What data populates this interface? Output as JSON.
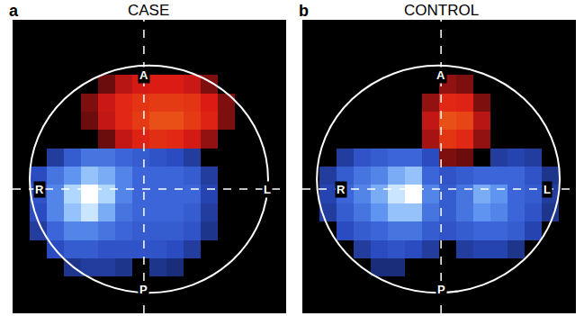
{
  "chart_data": [
    {
      "type": "heatmap",
      "panel_label": "a",
      "title": "CASE",
      "annotations": [
        "A",
        "P",
        "R",
        "L"
      ],
      "x": [
        1,
        3,
        5,
        7,
        9,
        11,
        13,
        15,
        17,
        19,
        21,
        23,
        25,
        27,
        29,
        31
      ],
      "y": [
        1,
        3,
        5,
        7,
        9,
        11,
        13,
        15,
        17,
        19,
        21,
        23,
        25,
        27,
        29,
        31
      ],
      "z": [
        [
          0,
          0,
          0,
          0,
          0,
          0,
          0,
          0,
          0,
          0,
          0,
          0,
          0,
          0,
          0,
          0
        ],
        [
          0,
          0,
          0,
          0,
          0,
          0,
          0,
          0,
          0,
          0,
          0,
          0,
          0,
          0,
          0,
          0
        ],
        [
          0,
          0,
          0,
          0,
          0,
          0,
          0,
          0,
          0,
          0,
          0,
          0,
          0,
          0,
          0,
          0
        ],
        [
          0,
          0,
          0,
          0,
          0,
          20,
          40,
          55,
          60,
          60,
          50,
          25,
          0,
          0,
          0,
          0
        ],
        [
          0,
          0,
          0,
          0,
          25,
          50,
          70,
          80,
          85,
          85,
          80,
          60,
          25,
          0,
          0,
          0
        ],
        [
          0,
          0,
          0,
          0,
          20,
          45,
          70,
          85,
          95,
          95,
          85,
          65,
          25,
          0,
          0,
          0
        ],
        [
          0,
          0,
          0,
          0,
          0,
          20,
          45,
          65,
          75,
          70,
          55,
          30,
          0,
          0,
          0,
          0
        ],
        [
          0,
          0,
          -30,
          -50,
          -60,
          -60,
          -55,
          -50,
          -45,
          -40,
          -30,
          0,
          0,
          0,
          0,
          0
        ],
        [
          0,
          -40,
          -60,
          -70,
          -80,
          -75,
          -65,
          -55,
          -55,
          -55,
          -50,
          -30,
          0,
          0,
          0,
          0
        ],
        [
          0,
          -45,
          -65,
          -85,
          -100,
          -85,
          -65,
          -55,
          -55,
          -55,
          -55,
          -35,
          0,
          0,
          0,
          0
        ],
        [
          0,
          -40,
          -65,
          -80,
          -90,
          -75,
          -60,
          -55,
          -55,
          -55,
          -50,
          -30,
          0,
          0,
          0,
          0
        ],
        [
          0,
          -30,
          -55,
          -65,
          -65,
          -60,
          -55,
          -50,
          -50,
          -50,
          -45,
          -25,
          0,
          0,
          0,
          0
        ],
        [
          0,
          0,
          -40,
          -50,
          -50,
          -45,
          -45,
          -45,
          -45,
          -40,
          -30,
          0,
          0,
          0,
          0,
          0
        ],
        [
          0,
          0,
          0,
          -25,
          -30,
          -30,
          -25,
          0,
          -25,
          -20,
          0,
          0,
          0,
          0,
          0,
          0
        ],
        [
          0,
          0,
          0,
          0,
          0,
          0,
          0,
          0,
          0,
          0,
          0,
          0,
          0,
          0,
          0,
          0
        ],
        [
          0,
          0,
          0,
          0,
          0,
          0,
          0,
          0,
          0,
          0,
          0,
          0,
          0,
          0,
          0,
          0
        ]
      ],
      "xlim": [
        0,
        32
      ],
      "ylim": [
        0,
        32
      ],
      "zlim": [
        -100,
        100
      ],
      "tick_labels": false
    },
    {
      "type": "heatmap",
      "panel_label": "b",
      "title": "CONTROL",
      "annotations": [
        "A",
        "P",
        "R",
        "L"
      ],
      "x": [
        1,
        3,
        5,
        7,
        9,
        11,
        13,
        15,
        17,
        19,
        21,
        23,
        25,
        27,
        29,
        31
      ],
      "y": [
        1,
        3,
        5,
        7,
        9,
        11,
        13,
        15,
        17,
        19,
        21,
        23,
        25,
        27,
        29,
        31
      ],
      "z": [
        [
          0,
          0,
          0,
          0,
          0,
          0,
          0,
          0,
          0,
          0,
          0,
          0,
          0,
          0,
          0,
          0
        ],
        [
          0,
          0,
          0,
          0,
          0,
          0,
          0,
          0,
          0,
          0,
          0,
          0,
          0,
          0,
          0,
          0
        ],
        [
          0,
          0,
          0,
          0,
          0,
          0,
          0,
          0,
          0,
          0,
          0,
          0,
          0,
          0,
          0,
          0
        ],
        [
          0,
          0,
          0,
          0,
          0,
          0,
          0,
          0,
          30,
          25,
          0,
          0,
          0,
          0,
          0,
          0
        ],
        [
          0,
          0,
          0,
          0,
          0,
          0,
          0,
          30,
          70,
          65,
          25,
          0,
          0,
          0,
          0,
          0
        ],
        [
          0,
          0,
          0,
          0,
          0,
          0,
          0,
          45,
          95,
          90,
          40,
          0,
          0,
          0,
          0,
          0
        ],
        [
          0,
          0,
          0,
          0,
          0,
          0,
          0,
          35,
          80,
          70,
          30,
          0,
          0,
          0,
          0,
          0
        ],
        [
          0,
          0,
          -30,
          -45,
          -50,
          -55,
          -55,
          -40,
          25,
          20,
          0,
          -30,
          -35,
          -30,
          0,
          0
        ],
        [
          0,
          -30,
          -50,
          -60,
          -65,
          -75,
          -80,
          -55,
          -45,
          -50,
          -55,
          -55,
          -55,
          -45,
          -25,
          0
        ],
        [
          0,
          -35,
          -55,
          -65,
          -75,
          -90,
          -100,
          -65,
          -50,
          -60,
          -75,
          -70,
          -55,
          -50,
          -30,
          0
        ],
        [
          0,
          -30,
          -50,
          -60,
          -70,
          -80,
          -80,
          -60,
          -50,
          -60,
          -70,
          -65,
          -55,
          -45,
          -25,
          0
        ],
        [
          0,
          0,
          -40,
          -50,
          -55,
          -60,
          -60,
          -50,
          -45,
          -50,
          -55,
          -55,
          -50,
          -35,
          0,
          0
        ],
        [
          0,
          0,
          0,
          -30,
          -40,
          -45,
          -40,
          -30,
          0,
          -30,
          -35,
          -35,
          -25,
          0,
          0,
          0
        ],
        [
          0,
          0,
          0,
          0,
          -20,
          -20,
          0,
          0,
          0,
          0,
          0,
          0,
          0,
          0,
          0,
          0
        ],
        [
          0,
          0,
          0,
          0,
          0,
          0,
          0,
          0,
          0,
          0,
          0,
          0,
          0,
          0,
          0,
          0
        ],
        [
          0,
          0,
          0,
          0,
          0,
          0,
          0,
          0,
          0,
          0,
          0,
          0,
          0,
          0,
          0,
          0
        ]
      ],
      "xlim": [
        0,
        32
      ],
      "ylim": [
        0,
        32
      ],
      "zlim": [
        -100,
        100
      ],
      "tick_labels": false
    }
  ]
}
